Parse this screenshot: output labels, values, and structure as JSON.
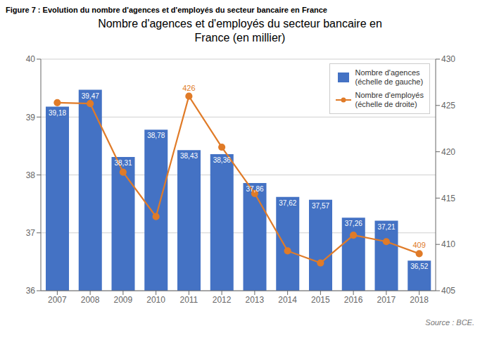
{
  "chart_data": {
    "type": "bar",
    "subtitle": "Figure 7 : Evolution du nombre d'agences et d'employés du secteur bancaire en France",
    "title": "Nombre d'agences et d'employés du secteur bancaire en\nFrance (en millier)",
    "source": "Source : BCE.",
    "categories": [
      "2007",
      "2008",
      "2009",
      "2010",
      "2011",
      "2012",
      "2013",
      "2014",
      "2015",
      "2016",
      "2017",
      "2018"
    ],
    "series": [
      {
        "name": "Nombre d'agences\n(échelle de gauche)",
        "type": "bar",
        "color": "#4472C4",
        "values": [
          39.18,
          39.47,
          38.31,
          38.78,
          38.43,
          38.36,
          37.86,
          37.62,
          37.57,
          37.26,
          37.21,
          36.52
        ],
        "value_labels": [
          "39,18",
          "39,47",
          "38,31",
          "38,78",
          "38,43",
          "38,36",
          "37,86",
          "37,62",
          "37,57",
          "37,26",
          "37,21",
          "36,52"
        ],
        "data_labels": true
      },
      {
        "name": "Nombre d'employés\n(échelle de droite)",
        "type": "line",
        "axis": "y2",
        "color": "#E07B28",
        "marker": "circle",
        "values": [
          425.3,
          425.2,
          417.8,
          413.0,
          426.0,
          420.5,
          415.5,
          409.3,
          408.0,
          411.0,
          410.3,
          409.0
        ]
      }
    ],
    "annotations": [
      {
        "category": "2011",
        "value": 426,
        "label": "426",
        "axis": "y2"
      },
      {
        "category": "2018",
        "value": 409,
        "label": "409",
        "axis": "y2"
      }
    ],
    "ylim": [
      36,
      40
    ],
    "yticks": [
      36,
      37,
      38,
      39,
      40
    ],
    "y2lim": [
      405,
      430
    ],
    "y2ticks": [
      405,
      410,
      415,
      420,
      425,
      430
    ],
    "grid": "y",
    "legend": "upper right"
  }
}
